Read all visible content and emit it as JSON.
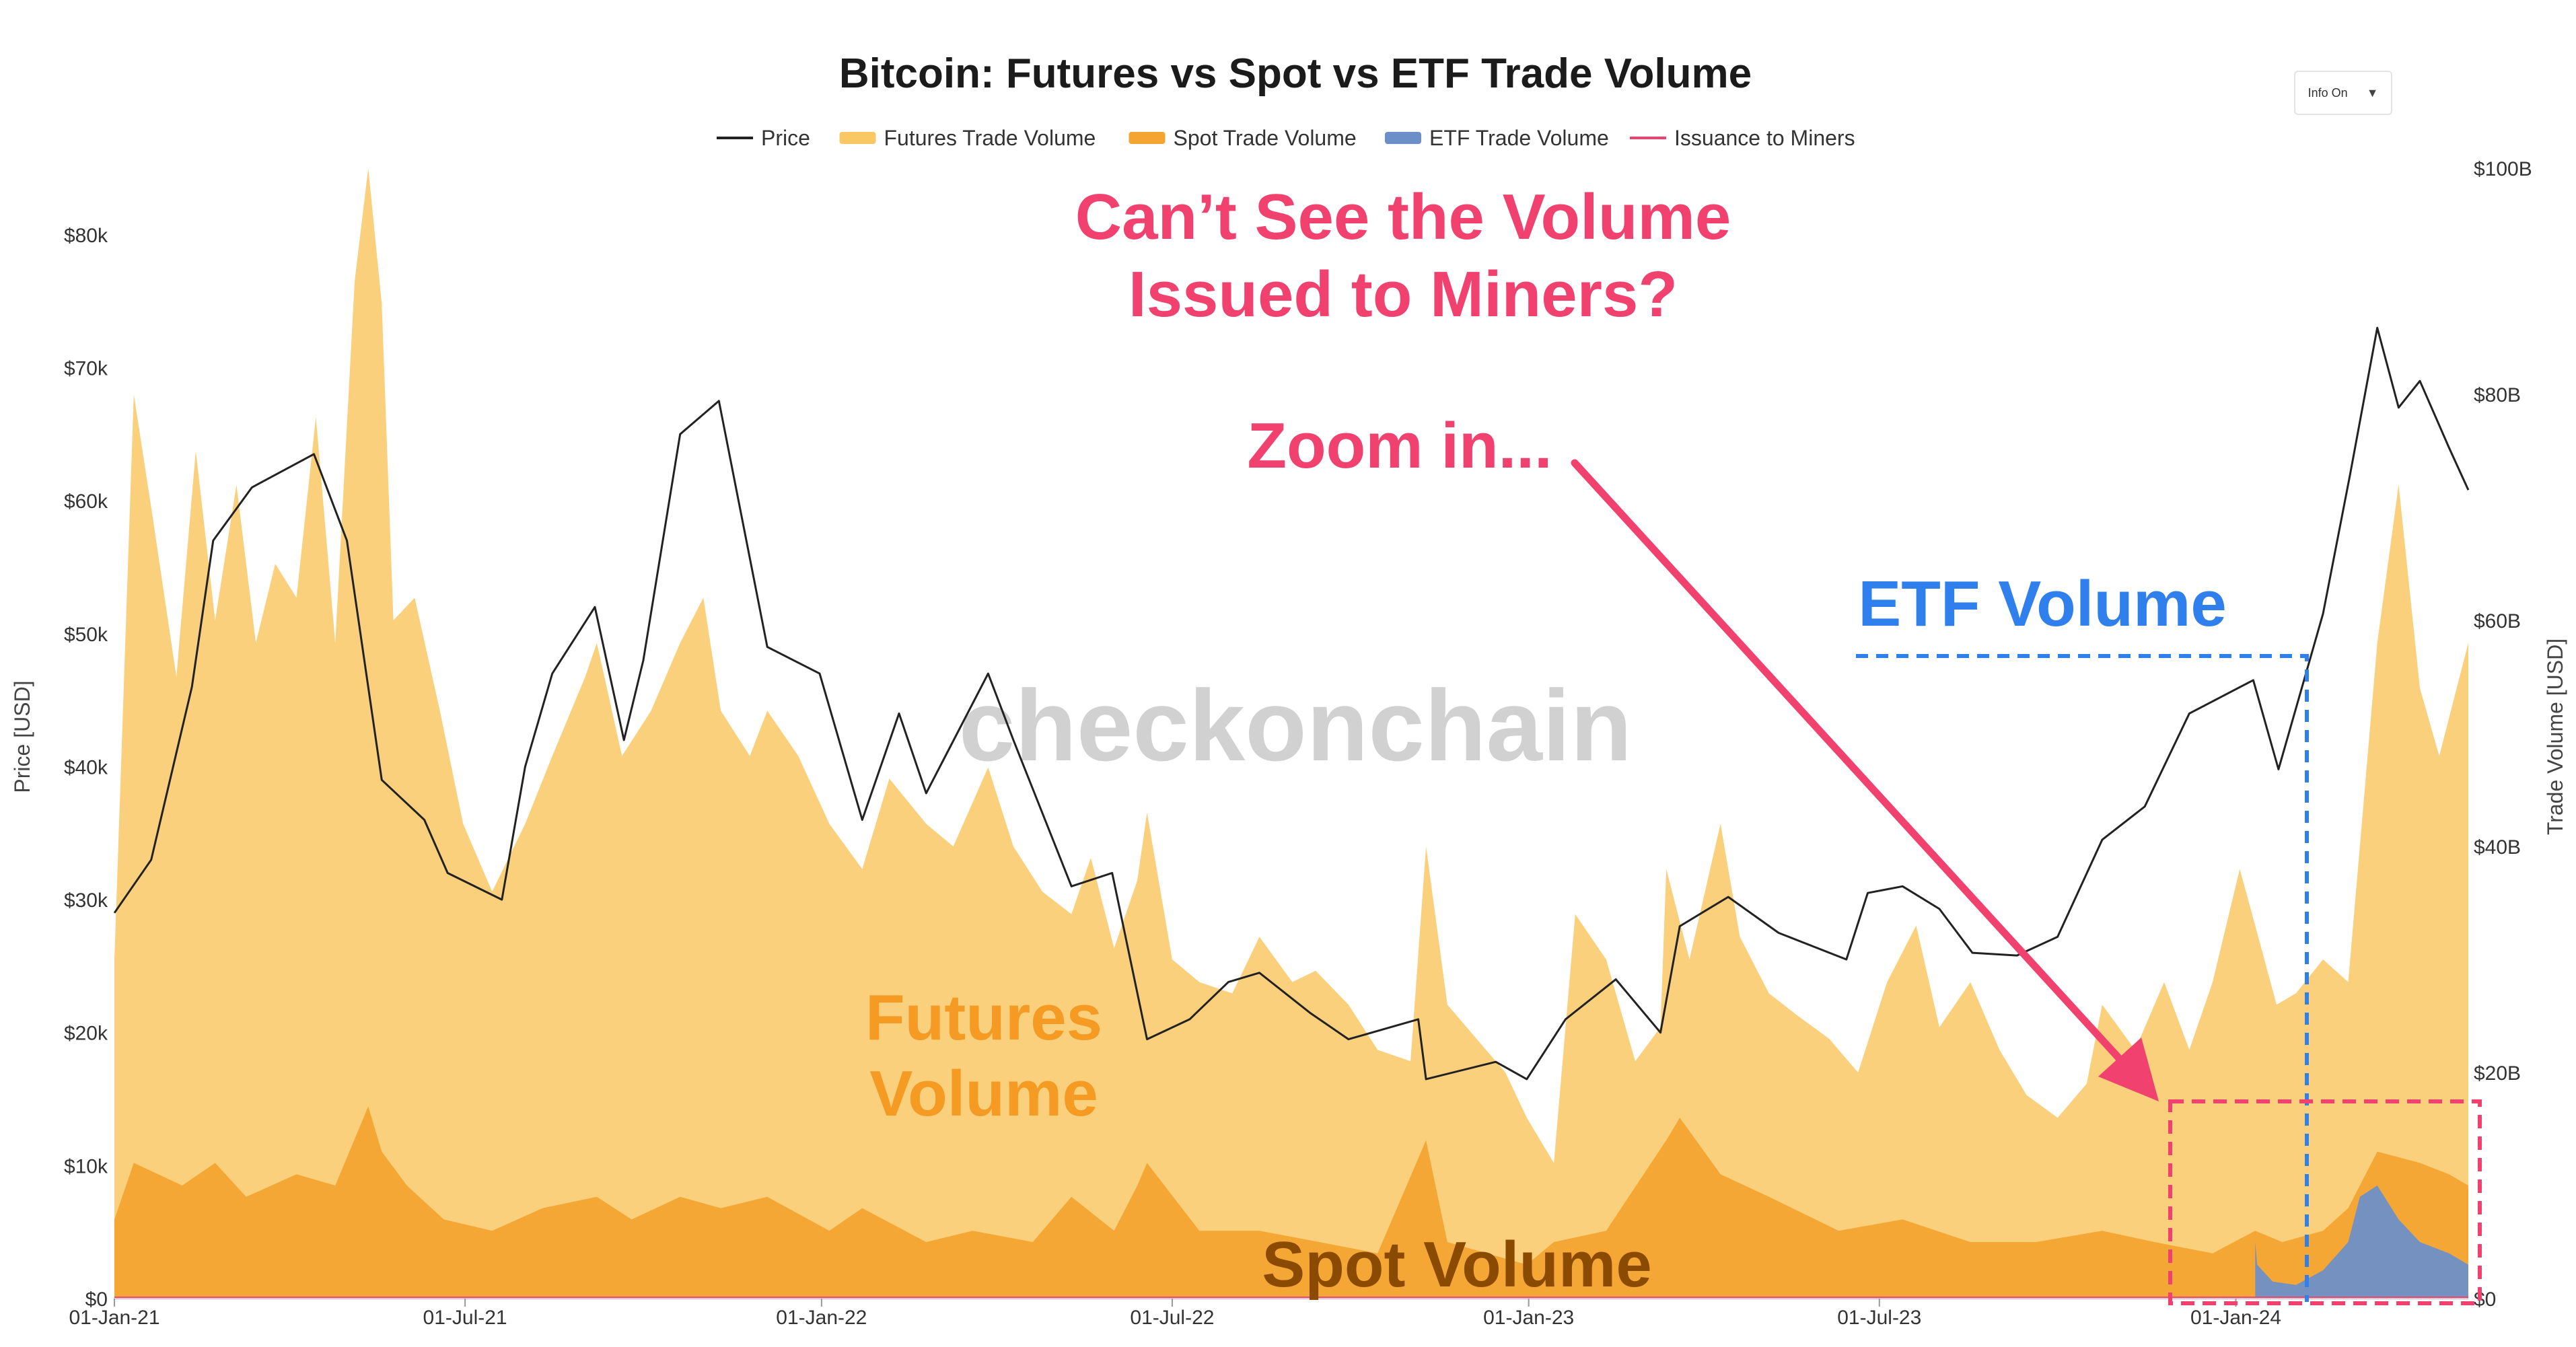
{
  "chart_data": {
    "type": "area",
    "title": "Bitcoin: Futures vs Spot vs ETF Trade Volume",
    "y_left_label": "Price [USD]",
    "y_right_label": "Trade Volume [USD]",
    "y_left_ticks": [
      "$0",
      "$10k",
      "$20k",
      "$30k",
      "$40k",
      "$50k",
      "$60k",
      "$70k",
      "$80k"
    ],
    "y_right_ticks": [
      "$0",
      "$20B",
      "$40B",
      "$60B",
      "$80B",
      "$100B"
    ],
    "y_left_range": [
      0,
      85000
    ],
    "y_right_range": [
      0,
      100000000000
    ],
    "x_tick_labels": [
      "01-Jan-21",
      "01-Jul-21",
      "01-Jan-22",
      "01-Jul-22",
      "01-Jan-23",
      "01-Jul-23",
      "01-Jan-24"
    ],
    "x_range": [
      "2021-01-01",
      "2024-04-30"
    ],
    "grid": false,
    "legend_position": "top-center",
    "watermark": "checkonchain",
    "series": [
      {
        "name": "Price",
        "axis": "left",
        "color": "#222222",
        "x": [
          "2021-01-01",
          "2021-01-20",
          "2021-02-10",
          "2021-02-21",
          "2021-03-13",
          "2021-04-14",
          "2021-05-01",
          "2021-05-19",
          "2021-06-10",
          "2021-06-22",
          "2021-07-20",
          "2021-08-01",
          "2021-08-15",
          "2021-09-06",
          "2021-09-21",
          "2021-10-01",
          "2021-10-20",
          "2021-11-09",
          "2021-12-04",
          "2021-12-31",
          "2022-01-22",
          "2022-02-10",
          "2022-02-24",
          "2022-03-28",
          "2022-04-10",
          "2022-05-10",
          "2022-05-31",
          "2022-06-18",
          "2022-07-10",
          "2022-07-30",
          "2022-08-15",
          "2022-09-10",
          "2022-09-30",
          "2022-11-05",
          "2022-11-09",
          "2022-12-15",
          "2022-12-31",
          "2023-01-20",
          "2023-02-15",
          "2023-03-10",
          "2023-03-20",
          "2023-04-14",
          "2023-05-10",
          "2023-06-14",
          "2023-06-25",
          "2023-07-13",
          "2023-08-01",
          "2023-08-18",
          "2023-09-10",
          "2023-10-01",
          "2023-10-24",
          "2023-11-15",
          "2023-12-08",
          "2024-01-10",
          "2024-01-23",
          "2024-02-15",
          "2024-02-29",
          "2024-03-14",
          "2024-03-25",
          "2024-04-05",
          "2024-04-20",
          "2024-04-30"
        ],
        "y": [
          29000,
          33000,
          46000,
          57000,
          61000,
          63500,
          57000,
          39000,
          36000,
          32000,
          30000,
          40000,
          47000,
          52000,
          42000,
          48000,
          65000,
          67500,
          49000,
          47000,
          36000,
          44000,
          38000,
          47000,
          42000,
          31000,
          32000,
          19500,
          21000,
          23800,
          24500,
          21500,
          19500,
          21000,
          16500,
          17800,
          16500,
          21000,
          24000,
          20000,
          28000,
          30200,
          27500,
          25500,
          30500,
          31000,
          29300,
          26000,
          25800,
          27200,
          34500,
          37000,
          44000,
          46500,
          39800,
          51500,
          62000,
          73000,
          67000,
          69000,
          64000,
          60800
        ]
      },
      {
        "name": "Futures Trade Volume",
        "axis": "right",
        "color": "#f9c865",
        "x": [
          "2021-01-01",
          "2021-01-11",
          "2021-01-20",
          "2021-02-02",
          "2021-02-12",
          "2021-02-22",
          "2021-03-05",
          "2021-03-15",
          "2021-03-25",
          "2021-04-05",
          "2021-04-15",
          "2021-04-25",
          "2021-05-05",
          "2021-05-12",
          "2021-05-19",
          "2021-05-25",
          "2021-06-05",
          "2021-06-18",
          "2021-06-30",
          "2021-07-15",
          "2021-08-01",
          "2021-08-15",
          "2021-09-01",
          "2021-09-07",
          "2021-09-20",
          "2021-10-05",
          "2021-10-20",
          "2021-11-01",
          "2021-11-10",
          "2021-11-25",
          "2021-12-04",
          "2021-12-20",
          "2022-01-05",
          "2022-01-22",
          "2022-02-05",
          "2022-02-24",
          "2022-03-10",
          "2022-03-28",
          "2022-04-10",
          "2022-04-25",
          "2022-05-10",
          "2022-05-20",
          "2022-06-01",
          "2022-06-13",
          "2022-06-18",
          "2022-07-01",
          "2022-07-15",
          "2022-08-01",
          "2022-08-15",
          "2022-09-01",
          "2022-09-13",
          "2022-09-30",
          "2022-10-15",
          "2022-11-01",
          "2022-11-09",
          "2022-11-20",
          "2022-12-05",
          "2022-12-20",
          "2022-12-31",
          "2023-01-14",
          "2023-01-25",
          "2023-02-10",
          "2023-02-25",
          "2023-03-10",
          "2023-03-13",
          "2023-03-25",
          "2023-04-10",
          "2023-04-20",
          "2023-05-05",
          "2023-05-20",
          "2023-06-05",
          "2023-06-20",
          "2023-07-05",
          "2023-07-20",
          "2023-08-01",
          "2023-08-17",
          "2023-09-01",
          "2023-09-15",
          "2023-10-01",
          "2023-10-16",
          "2023-10-24",
          "2023-11-10",
          "2023-11-25",
          "2023-12-08",
          "2023-12-20",
          "2024-01-03",
          "2024-01-11",
          "2024-01-22",
          "2024-02-01",
          "2024-02-15",
          "2024-02-28",
          "2024-03-05",
          "2024-03-14",
          "2024-03-25",
          "2024-04-05",
          "2024-04-15",
          "2024-04-30"
        ],
        "y": [
          30,
          80,
          70,
          55,
          75,
          60,
          72,
          58,
          65,
          62,
          78,
          58,
          90,
          100,
          88,
          60,
          62,
          52,
          42,
          36,
          42,
          48,
          55,
          58,
          48,
          52,
          58,
          62,
          52,
          48,
          52,
          48,
          42,
          38,
          46,
          42,
          40,
          47,
          40,
          36,
          34,
          39,
          31,
          37,
          43,
          30,
          28,
          27,
          32,
          28,
          29,
          26,
          22,
          21,
          40,
          26,
          23,
          20,
          16,
          12,
          34,
          30,
          21,
          24,
          38,
          30,
          42,
          32,
          27,
          25,
          23,
          20,
          28,
          33,
          24,
          28,
          22,
          18,
          16,
          19,
          26,
          22,
          28,
          22,
          28,
          38,
          33,
          26,
          27,
          30,
          28,
          40,
          58,
          72,
          54,
          48,
          58
        ]
      },
      {
        "name": "Spot Trade Volume",
        "axis": "right",
        "color": "#f4a431",
        "x": [
          "2021-01-01",
          "2021-01-11",
          "2021-02-05",
          "2021-02-22",
          "2021-03-10",
          "2021-04-05",
          "2021-04-25",
          "2021-05-12",
          "2021-05-19",
          "2021-06-01",
          "2021-06-20",
          "2021-07-15",
          "2021-08-10",
          "2021-09-07",
          "2021-09-25",
          "2021-10-20",
          "2021-11-10",
          "2021-12-04",
          "2022-01-05",
          "2022-01-22",
          "2022-02-24",
          "2022-03-20",
          "2022-04-20",
          "2022-05-10",
          "2022-06-01",
          "2022-06-13",
          "2022-06-18",
          "2022-07-15",
          "2022-08-15",
          "2022-09-15",
          "2022-10-15",
          "2022-11-09",
          "2022-11-20",
          "2022-12-31",
          "2023-01-14",
          "2023-02-10",
          "2023-03-13",
          "2023-03-20",
          "2023-04-10",
          "2023-05-05",
          "2023-06-10",
          "2023-07-13",
          "2023-08-17",
          "2023-09-20",
          "2023-10-24",
          "2023-11-20",
          "2023-12-20",
          "2024-01-11",
          "2024-01-25",
          "2024-02-15",
          "2024-02-28",
          "2024-03-14",
          "2024-04-05",
          "2024-04-20",
          "2024-04-30"
        ],
        "y": [
          7,
          12,
          10,
          12,
          9,
          11,
          10,
          17,
          13,
          10,
          7,
          6,
          8,
          9,
          7,
          9,
          8,
          9,
          6,
          8,
          5,
          6,
          5,
          9,
          6,
          10,
          12,
          6,
          6,
          5,
          4,
          14,
          5,
          3,
          5,
          6,
          14,
          16,
          11,
          9,
          6,
          7,
          5,
          5,
          6,
          5,
          4,
          6,
          5,
          6,
          8,
          13,
          12,
          11,
          10
        ]
      },
      {
        "name": "ETF Trade Volume",
        "axis": "right",
        "color": "#6d8fc7",
        "x": [
          "2024-01-11",
          "2024-01-12",
          "2024-01-20",
          "2024-02-01",
          "2024-02-15",
          "2024-02-28",
          "2024-03-05",
          "2024-03-14",
          "2024-03-25",
          "2024-04-05",
          "2024-04-20",
          "2024-04-30"
        ],
        "y": [
          5,
          3,
          1.5,
          1.2,
          2.5,
          5,
          9,
          10,
          7,
          5,
          4,
          3
        ]
      },
      {
        "name": "Issuance to Miners",
        "axis": "right",
        "color": "#f0416f",
        "x": [
          "2021-01-01",
          "2024-04-30"
        ],
        "y": [
          0.05,
          0.05
        ]
      }
    ],
    "annotations": [
      {
        "text": "Can’t See the Volume",
        "color": "#f0416f"
      },
      {
        "text": "Issued to Miners?",
        "color": "#f0416f"
      },
      {
        "text": "Zoom in...",
        "color": "#f0416f"
      },
      {
        "text": "ETF Volume",
        "color": "#2f80ed"
      },
      {
        "text": "Futures",
        "color": "#f59a23"
      },
      {
        "text": "Volume",
        "color": "#f59a23"
      },
      {
        "text": "Spot Volume",
        "color": "#8a4a00"
      }
    ]
  },
  "controls": {
    "info_label": "Info On"
  }
}
